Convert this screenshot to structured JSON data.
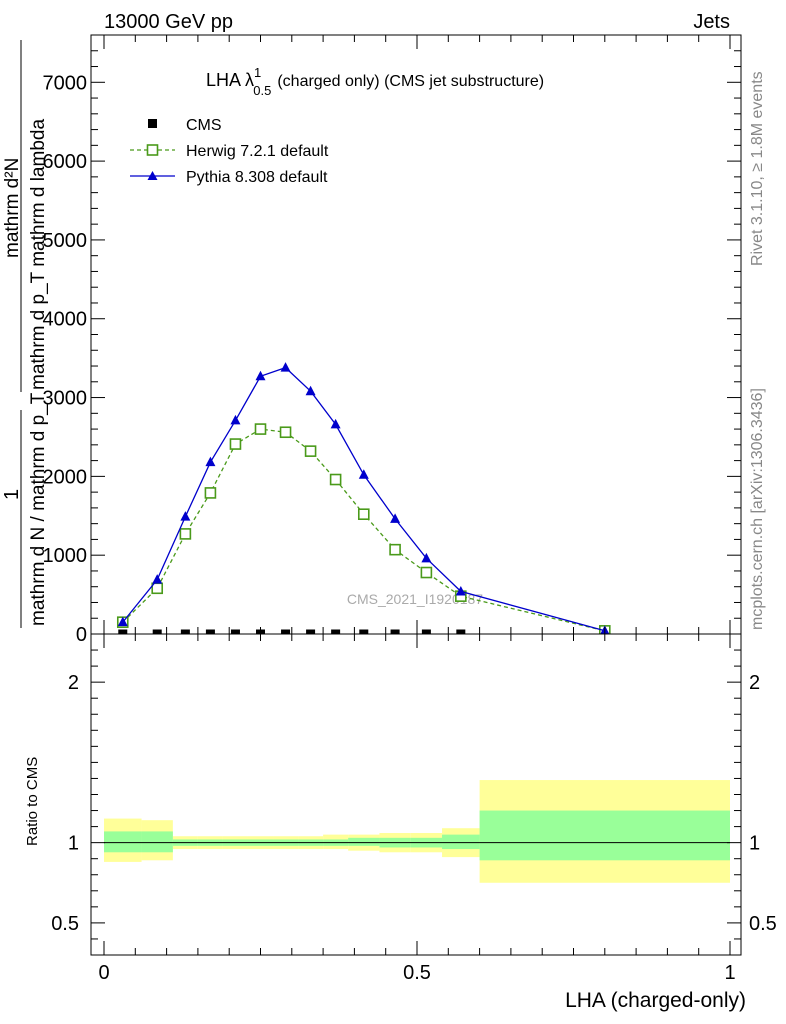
{
  "header": {
    "left": "13000 GeV pp",
    "right": "Jets"
  },
  "side_labels": {
    "rivet": "Rivet 3.1.10, ≥ 1.8M events",
    "mcplots": "mcplots.cern.ch [arXiv:1306.3436]"
  },
  "watermark": "CMS_2021_I1920187",
  "colors": {
    "cms": "#000000",
    "herwig": "#4a9a1a",
    "pythia": "#0000cc",
    "band_inner": "#99ff99",
    "band_outer": "#ffff99"
  },
  "chart_data": [
    {
      "type": "line",
      "title_main": "LHA λ",
      "title_sup": "1",
      "title_sub": "0.5",
      "title_rest": "(charged only) (CMS jet substructure)",
      "ylabel": "1/(mathrm d N / mathrm d p_T) mathrm d^2N/(mathrm d p_T mathrm d lambda)",
      "ylabel_num": "mathrm d²N",
      "ylabel_den": "mathrm d p_T mathrm d lambda",
      "ylabel_frac_num": "1",
      "ylabel_frac_den": "mathrm d N / mathrm d p_T",
      "xlim": [
        0,
        1
      ],
      "ylim": [
        0,
        7600
      ],
      "yticks": [
        0,
        1000,
        2000,
        3000,
        4000,
        5000,
        6000,
        7000
      ],
      "ytick_labels": [
        "0",
        "1000",
        "2000",
        "3000",
        "4000",
        "5000",
        "6000",
        "7000"
      ],
      "legend_position": "top-left",
      "series": [
        {
          "name": "CMS",
          "marker": "filled-square",
          "x": [
            0.03,
            0.085,
            0.13,
            0.17,
            0.21,
            0.25,
            0.29,
            0.33,
            0.37,
            0.415,
            0.465,
            0.515,
            0.57
          ],
          "y": [
            0,
            0,
            0,
            0,
            0,
            0,
            0,
            0,
            0,
            0,
            0,
            0,
            0
          ]
        },
        {
          "name": "Herwig 7.2.1 default",
          "marker": "open-square",
          "dashed": true,
          "x": [
            0.03,
            0.085,
            0.13,
            0.17,
            0.21,
            0.25,
            0.29,
            0.33,
            0.37,
            0.415,
            0.465,
            0.515,
            0.57,
            0.8
          ],
          "y": [
            150,
            580,
            1270,
            1790,
            2410,
            2600,
            2560,
            2320,
            1960,
            1520,
            1070,
            780,
            480,
            40
          ]
        },
        {
          "name": "Pythia 8.308 default",
          "marker": "filled-triangle",
          "dashed": false,
          "x": [
            0.03,
            0.085,
            0.13,
            0.17,
            0.21,
            0.25,
            0.29,
            0.33,
            0.37,
            0.415,
            0.465,
            0.515,
            0.57,
            0.8
          ],
          "y": [
            150,
            690,
            1490,
            2180,
            2710,
            3270,
            3380,
            3080,
            2660,
            2020,
            1460,
            960,
            540,
            40
          ]
        }
      ]
    },
    {
      "type": "line",
      "ylabel": "Ratio to CMS",
      "xlabel": "LHA (charged-only)",
      "xlim": [
        0,
        1
      ],
      "xticks": [
        0,
        0.5,
        1
      ],
      "xtick_labels": [
        "0",
        "0.5",
        "1"
      ],
      "ylim": [
        0.3,
        2.3
      ],
      "yticks": [
        0.5,
        1,
        2
      ],
      "ytick_labels": [
        "0.5",
        "1",
        "2"
      ],
      "reference": 1,
      "bands": [
        {
          "x0": 0.0,
          "x1": 0.06,
          "inner": [
            0.94,
            1.07
          ],
          "outer": [
            0.88,
            1.15
          ]
        },
        {
          "x0": 0.06,
          "x1": 0.11,
          "inner": [
            0.94,
            1.07
          ],
          "outer": [
            0.89,
            1.14
          ]
        },
        {
          "x0": 0.11,
          "x1": 0.15,
          "inner": [
            0.98,
            1.02
          ],
          "outer": [
            0.96,
            1.04
          ]
        },
        {
          "x0": 0.15,
          "x1": 0.19,
          "inner": [
            0.98,
            1.02
          ],
          "outer": [
            0.96,
            1.04
          ]
        },
        {
          "x0": 0.19,
          "x1": 0.23,
          "inner": [
            0.98,
            1.02
          ],
          "outer": [
            0.96,
            1.04
          ]
        },
        {
          "x0": 0.23,
          "x1": 0.27,
          "inner": [
            0.98,
            1.02
          ],
          "outer": [
            0.96,
            1.04
          ]
        },
        {
          "x0": 0.27,
          "x1": 0.31,
          "inner": [
            0.98,
            1.02
          ],
          "outer": [
            0.96,
            1.04
          ]
        },
        {
          "x0": 0.31,
          "x1": 0.35,
          "inner": [
            0.98,
            1.02
          ],
          "outer": [
            0.96,
            1.04
          ]
        },
        {
          "x0": 0.35,
          "x1": 0.39,
          "inner": [
            0.98,
            1.02
          ],
          "outer": [
            0.96,
            1.05
          ]
        },
        {
          "x0": 0.39,
          "x1": 0.44,
          "inner": [
            0.98,
            1.03
          ],
          "outer": [
            0.95,
            1.05
          ]
        },
        {
          "x0": 0.44,
          "x1": 0.49,
          "inner": [
            0.97,
            1.03
          ],
          "outer": [
            0.94,
            1.06
          ]
        },
        {
          "x0": 0.49,
          "x1": 0.54,
          "inner": [
            0.97,
            1.03
          ],
          "outer": [
            0.94,
            1.06
          ]
        },
        {
          "x0": 0.54,
          "x1": 0.6,
          "inner": [
            0.96,
            1.05
          ],
          "outer": [
            0.91,
            1.09
          ]
        },
        {
          "x0": 0.6,
          "x1": 1.0,
          "inner": [
            0.89,
            1.2
          ],
          "outer": [
            0.75,
            1.39
          ]
        }
      ]
    }
  ]
}
